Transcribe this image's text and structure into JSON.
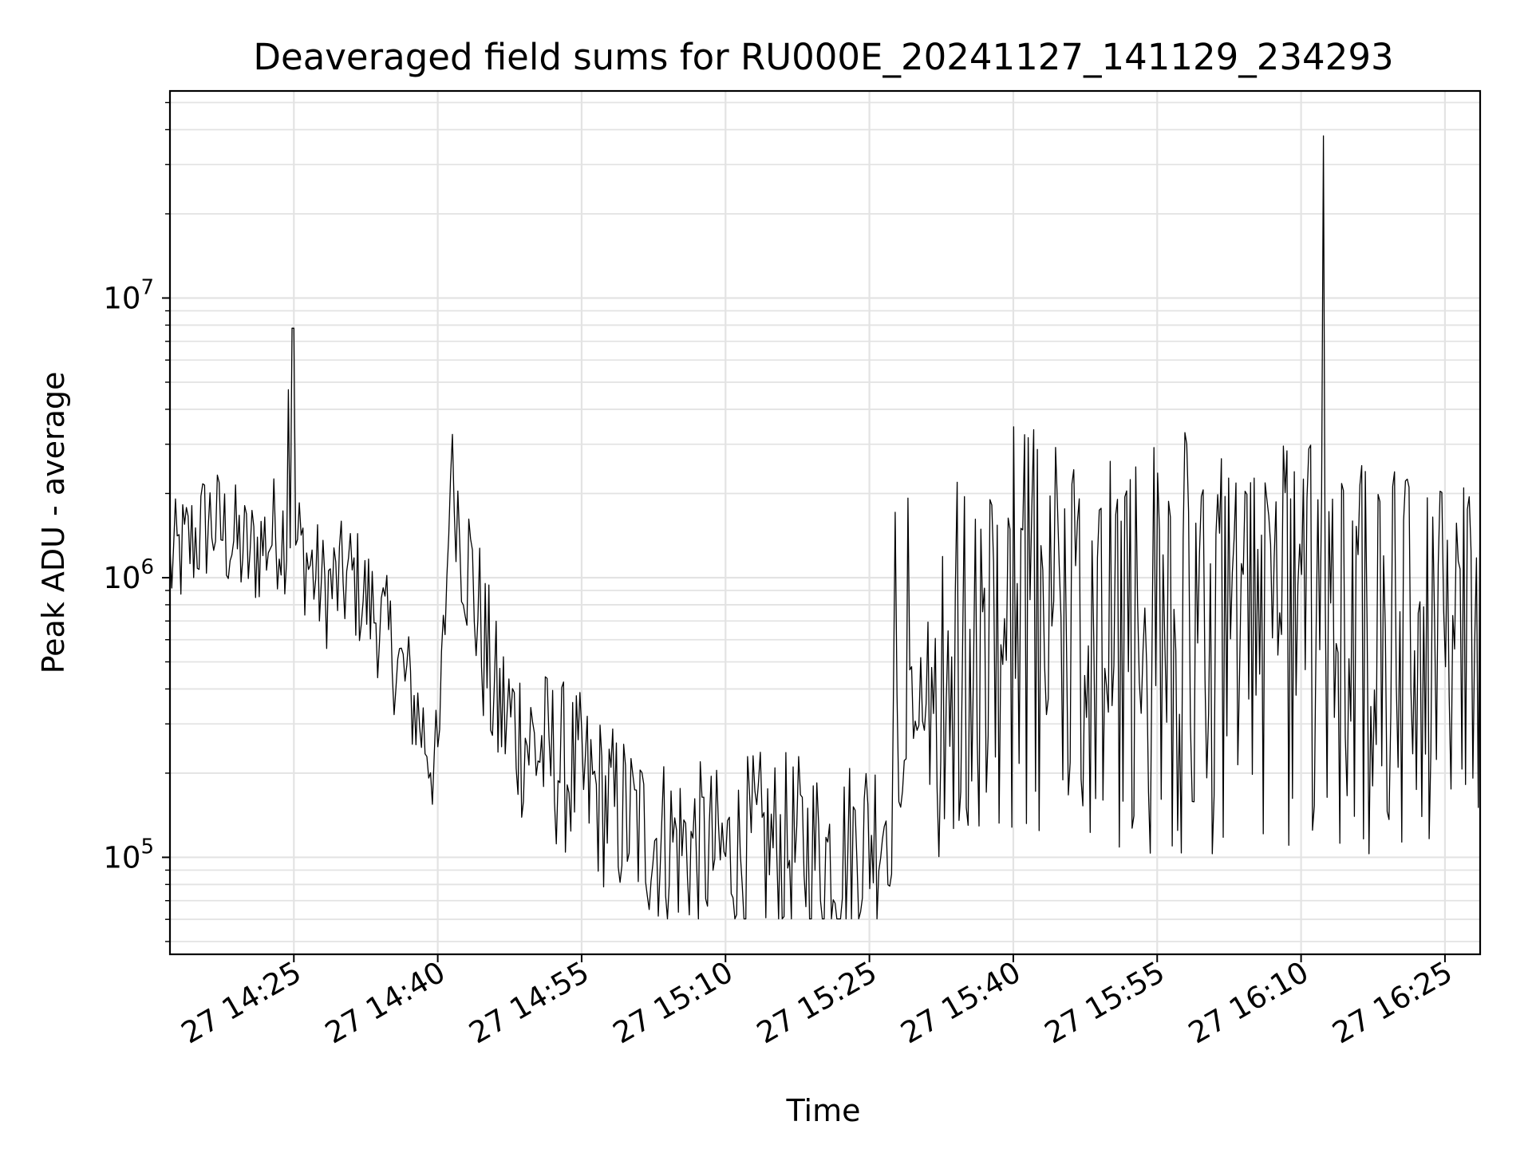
{
  "chart_data": {
    "type": "line",
    "title": "Deaveraged field sums for RU000E_20241127_141129_234293",
    "xlabel": "Time",
    "ylabel": "Peak ADU - average",
    "x_tick_labels": [
      "27 14:25",
      "27 14:40",
      "27 14:55",
      "27 15:10",
      "27 15:25",
      "27 15:40",
      "27 15:55",
      "27 16:10",
      "27 16:25"
    ],
    "x_range": [
      "2024-11-27 14:12:05",
      "2024-11-27 16:28:40"
    ],
    "y_scale": "log",
    "ylim": [
      45000,
      55000000
    ],
    "y_tick_labels": [
      {
        "value": 100000,
        "base": "10",
        "exp": "5"
      },
      {
        "value": 1000000,
        "base": "10",
        "exp": "6"
      },
      {
        "value": 10000000,
        "base": "10",
        "exp": "7"
      }
    ],
    "grid": true,
    "line_color": "#000000",
    "series": [
      {
        "x": [
          "2024-11-27 14:12:05",
          "2024-11-27 14:16:20",
          "2024-11-27 14:20:20",
          "2024-11-27 14:23:30",
          "2024-11-27 14:25:35",
          "2024-11-27 14:28:00",
          "2024-11-27 14:31:00",
          "2024-11-27 14:34:00",
          "2024-11-27 14:37:00",
          "2024-11-27 14:40:00",
          "2024-11-27 14:41:25",
          "2024-11-27 14:46:00",
          "2024-11-27 14:50:00",
          "2024-11-27 14:54:00",
          "2024-11-27 14:58:00",
          "2024-11-27 15:02:00",
          "2024-11-27 15:06:00",
          "2024-11-27 15:10:00",
          "2024-11-27 15:14:00",
          "2024-11-27 15:18:00",
          "2024-11-27 15:22:00",
          "2024-11-27 15:26:00",
          "2024-11-27 15:30:00",
          "2024-11-27 15:33:30",
          "2024-11-27 15:40:00",
          "2024-11-27 15:45:00",
          "2024-11-27 15:50:00",
          "2024-11-27 15:55:00",
          "2024-11-27 16:00:00",
          "2024-11-27 16:05:00",
          "2024-11-27 16:09:00",
          "2024-11-27 16:13:30",
          "2024-11-27 16:18:00",
          "2024-11-27 16:22:00",
          "2024-11-27 16:25:00",
          "2024-11-27 16:28:40"
        ],
        "y": [
          1100000,
          1600000,
          1200000,
          1500000,
          1300000,
          900000,
          1000000,
          700000,
          400000,
          200000,
          2300000,
          350000,
          250000,
          200000,
          150000,
          120000,
          110000,
          100000,
          110000,
          105000,
          100000,
          130000,
          300000,
          400000,
          1000000,
          1000000,
          1100000,
          1000000,
          900000,
          1000000,
          1100000,
          1000000,
          800000,
          600000,
          500000,
          700000
        ]
      }
    ]
  }
}
